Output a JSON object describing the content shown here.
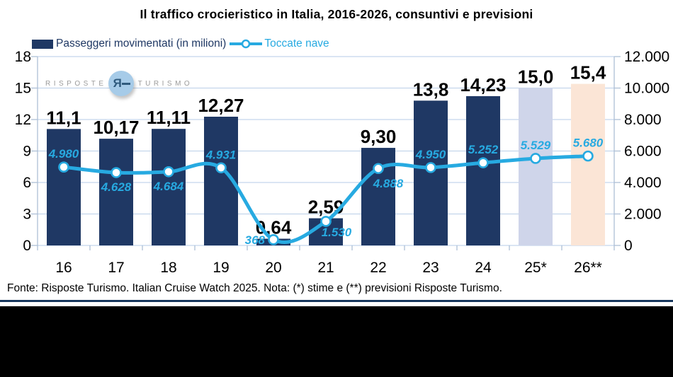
{
  "title": "Il traffico crocieristico in Italia, 2016-2026, consuntivi e previsioni",
  "legend": {
    "bar_label": "Passeggeri movimentati (in milioni)",
    "line_label": "Toccate nave"
  },
  "watermark": {
    "word_left": "RISPOSTE",
    "word_right": "TURISMO",
    "monogram": "Я"
  },
  "footer": "Fonte: Risposte Turismo. Italian Cruise Watch 2025. Nota: (*) stime e (**) previsioni Risposte Turismo.",
  "colors": {
    "bar": "#1f3864",
    "bar_estimate": "#cfd5ea",
    "bar_forecast": "#fbe5d6",
    "line": "#27aae1",
    "grid": "#c3d5ec",
    "axis_border": "#aebfd6",
    "text": "#000000",
    "rule": "#16365c"
  },
  "chart_data": {
    "type": "bar+line",
    "categories": [
      "16",
      "17",
      "18",
      "19",
      "20",
      "21",
      "22",
      "23",
      "24",
      "25*",
      "26**"
    ],
    "series": [
      {
        "name": "Passeggeri movimentati (in milioni)",
        "type": "bar",
        "axis": "left",
        "values": [
          11.1,
          10.17,
          11.11,
          12.27,
          0.64,
          2.59,
          9.3,
          13.8,
          14.23,
          15.0,
          15.4
        ],
        "labels": [
          "11,1",
          "10,17",
          "11,11",
          "12,27",
          "0,64",
          "2,59",
          "9,30",
          "13,8",
          "14,23",
          "15,0",
          "15,4"
        ],
        "point_colors": [
          "#1f3864",
          "#1f3864",
          "#1f3864",
          "#1f3864",
          "#1f3864",
          "#1f3864",
          "#1f3864",
          "#1f3864",
          "#1f3864",
          "#cfd5ea",
          "#fbe5d6"
        ]
      },
      {
        "name": "Toccate nave",
        "type": "line",
        "axis": "right",
        "values": [
          4980,
          4628,
          4684,
          4931,
          368,
          1530,
          4888,
          4950,
          5252,
          5529,
          5680
        ],
        "labels": [
          "4.980",
          "4.628",
          "4.684",
          "4.931",
          "368",
          "1.530",
          "4.888",
          "4.950",
          "5.252",
          "5.529",
          "5.680"
        ]
      }
    ],
    "left_axis": {
      "min": 0,
      "max": 18,
      "tick_labels": [
        "0",
        "3",
        "6",
        "9",
        "12",
        "15",
        "18"
      ]
    },
    "right_axis": {
      "min": 0,
      "max": 12000,
      "tick_labels": [
        "0",
        "2.000",
        "4.000",
        "6.000",
        "8.000",
        "10.000",
        "12.000"
      ]
    },
    "grid": true,
    "legend_position": "top-left",
    "label_offsets": [
      [
        0,
        -13
      ],
      [
        0,
        26
      ],
      [
        0,
        26
      ],
      [
        0,
        -13
      ],
      [
        -12,
        6,
        "end"
      ],
      [
        15,
        21
      ],
      [
        14,
        27
      ],
      [
        0,
        -13
      ],
      [
        0,
        -13
      ],
      [
        0,
        -13
      ],
      [
        0,
        -13
      ]
    ]
  }
}
